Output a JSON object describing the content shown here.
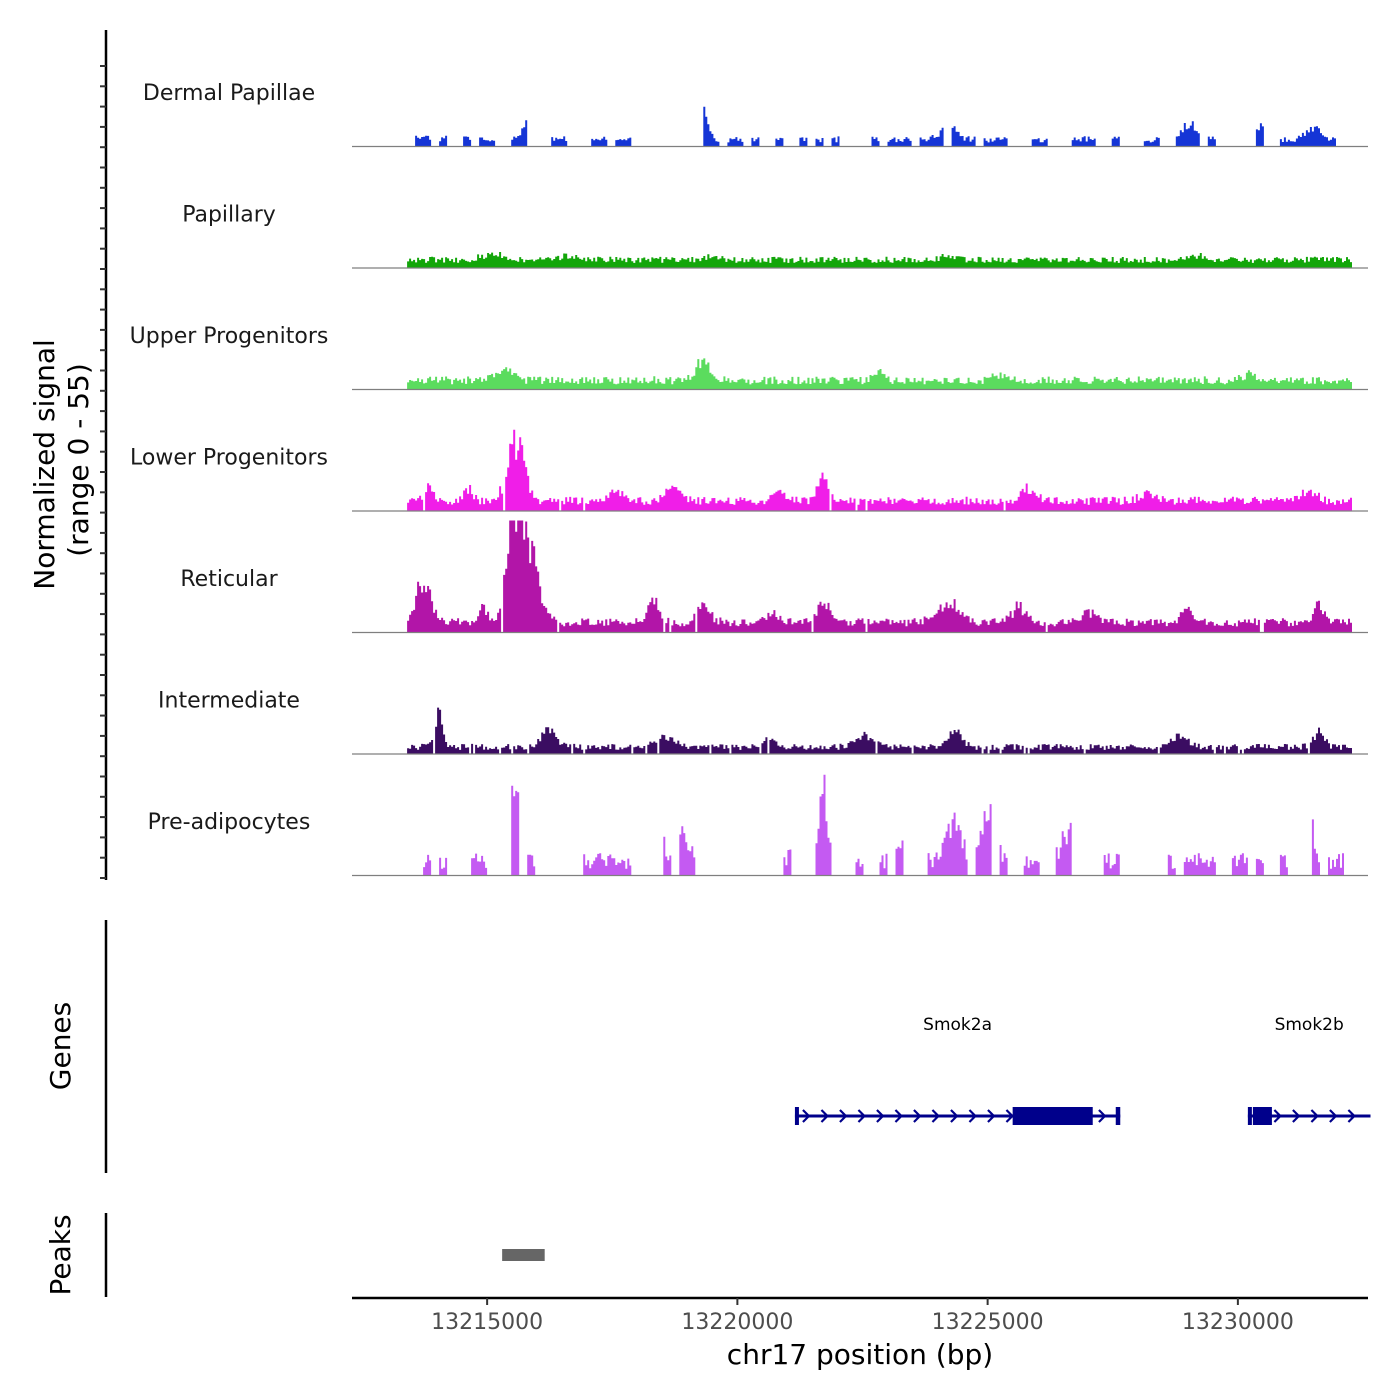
{
  "chart_data": {
    "type": "area",
    "chromosome": "chr17",
    "xlabel": "chr17 position (bp)",
    "xlim": [
      13212300,
      13232600
    ],
    "x_ticks": [
      13215000,
      13220000,
      13225000,
      13230000
    ],
    "x_tick_labels": [
      "13215000",
      "13220000",
      "13225000",
      "13230000"
    ],
    "coverage_ylabel": [
      "Normalized signal",
      "(range 0 - 55)"
    ],
    "ylim": [
      0,
      55
    ],
    "tracks": [
      {
        "name": "Dermal Papillae",
        "color": "#1535d6",
        "seed": 11,
        "style": "spiky",
        "background": 2,
        "noise": 3,
        "dropout": 0.55,
        "peaks": [
          [
            13213700,
            2,
            150
          ],
          [
            13214300,
            4,
            150
          ],
          [
            13215800,
            8,
            150
          ],
          [
            13216800,
            7,
            150
          ],
          [
            13219300,
            14,
            120
          ],
          [
            13224200,
            8,
            200
          ],
          [
            13229000,
            7,
            200
          ],
          [
            13230500,
            6,
            200
          ],
          [
            13231500,
            6,
            200
          ]
        ]
      },
      {
        "name": "Papillary",
        "color": "#13a60a",
        "seed": 23,
        "style": "smooth",
        "background": 2.5,
        "noise": 3,
        "dropout": 0,
        "peaks": [
          [
            13215100,
            3,
            300
          ],
          [
            13216500,
            2,
            300
          ],
          [
            13219500,
            2,
            200
          ],
          [
            13224200,
            2,
            200
          ],
          [
            13229200,
            2,
            200
          ]
        ]
      },
      {
        "name": "Upper Progenitors",
        "color": "#5bdc5e",
        "seed": 37,
        "style": "smooth",
        "background": 2.5,
        "noise": 4,
        "dropout": 0,
        "peaks": [
          [
            13215300,
            5,
            250
          ],
          [
            13219300,
            9,
            200
          ],
          [
            13222800,
            4,
            150
          ],
          [
            13225200,
            3,
            200
          ],
          [
            13230200,
            3,
            200
          ]
        ]
      },
      {
        "name": "Lower Progenitors",
        "color": "#f01ee8",
        "seed": 41,
        "style": "smooth",
        "background": 3,
        "noise": 4,
        "dropout": 0.02,
        "peaks": [
          [
            13213800,
            8,
            120
          ],
          [
            13214600,
            6,
            120
          ],
          [
            13215550,
            30,
            220
          ],
          [
            13217600,
            5,
            200
          ],
          [
            13218700,
            6,
            200
          ],
          [
            13220800,
            6,
            150
          ],
          [
            13221700,
            10,
            150
          ],
          [
            13225800,
            6,
            200
          ],
          [
            13228200,
            5,
            200
          ],
          [
            13231400,
            5,
            200
          ]
        ]
      },
      {
        "name": "Reticular",
        "color": "#b215a8",
        "seed": 53,
        "style": "smooth",
        "background": 3,
        "noise": 4,
        "dropout": 0.02,
        "peaks": [
          [
            13213700,
            22,
            200
          ],
          [
            13214900,
            6,
            150
          ],
          [
            13215500,
            50,
            180
          ],
          [
            13215800,
            36,
            280
          ],
          [
            13218300,
            12,
            150
          ],
          [
            13219300,
            8,
            200
          ],
          [
            13220700,
            4,
            200
          ],
          [
            13221700,
            10,
            150
          ],
          [
            13224200,
            10,
            300
          ],
          [
            13225600,
            8,
            200
          ],
          [
            13227000,
            6,
            200
          ],
          [
            13229000,
            6,
            200
          ],
          [
            13231600,
            8,
            150
          ]
        ]
      },
      {
        "name": "Intermediate",
        "color": "#3b0d62",
        "seed": 67,
        "style": "smooth",
        "background": 2,
        "noise": 3,
        "dropout": 0.05,
        "peaks": [
          [
            13214000,
            16,
            120
          ],
          [
            13216200,
            8,
            200
          ],
          [
            13218500,
            5,
            300
          ],
          [
            13220600,
            4,
            200
          ],
          [
            13222500,
            5,
            250
          ],
          [
            13224300,
            8,
            200
          ],
          [
            13228800,
            6,
            200
          ],
          [
            13231600,
            8,
            150
          ]
        ]
      },
      {
        "name": "Pre-adipocytes",
        "color": "#c45af2",
        "seed": 79,
        "style": "spiky",
        "background": 3,
        "noise": 8,
        "dropout": 0.62,
        "peaks": [
          [
            13214500,
            12,
            150
          ],
          [
            13215550,
            42,
            100
          ],
          [
            13216600,
            20,
            200
          ],
          [
            13218400,
            32,
            120
          ],
          [
            13218900,
            15,
            200
          ],
          [
            13221700,
            40,
            100
          ],
          [
            13221300,
            15,
            200
          ],
          [
            13223400,
            14,
            200
          ],
          [
            13224300,
            22,
            200
          ],
          [
            13225000,
            22,
            200
          ],
          [
            13226600,
            15,
            200
          ],
          [
            13228200,
            15,
            200
          ],
          [
            13231400,
            24,
            120
          ]
        ]
      }
    ],
    "genes_ylabel": "Genes",
    "genes": [
      {
        "name": "Smok2a",
        "strand": "+",
        "start": 13221150,
        "end": 13227650,
        "exons": [
          [
            13221150,
            13221220
          ],
          [
            13225500,
            13227100
          ],
          [
            13227560,
            13227650
          ]
        ]
      },
      {
        "name": "Smok2b",
        "strand": "+",
        "start": 13230200,
        "end": 13232650,
        "exons": [
          [
            13230200,
            13230260
          ],
          [
            13230300,
            13230680
          ]
        ]
      }
    ],
    "peaks_ylabel": "Peaks",
    "peak_regions": [
      [
        13215300,
        13216150
      ]
    ]
  }
}
